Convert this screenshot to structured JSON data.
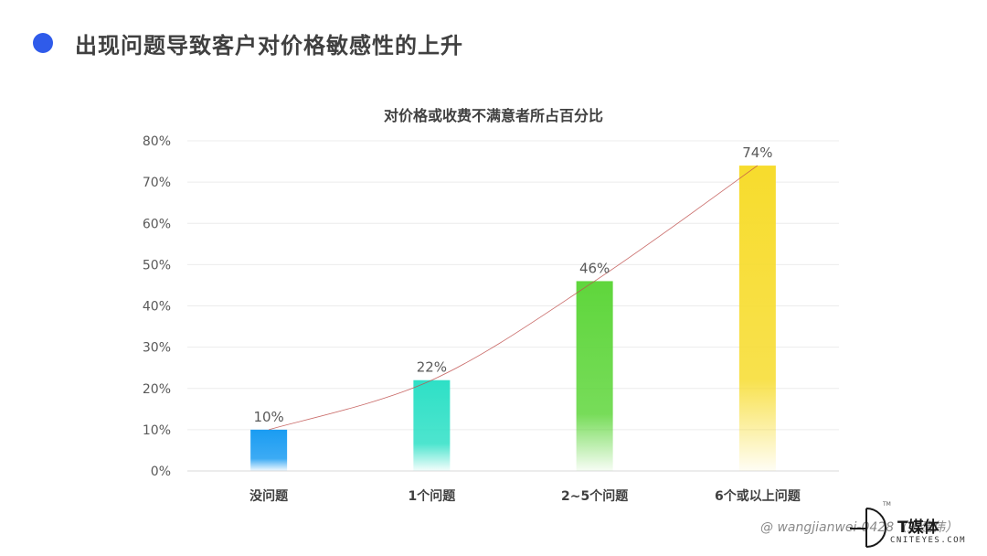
{
  "header": {
    "title": "出现问题导致客户对价格敏感性的上升",
    "bullet_color": "#2f5bea"
  },
  "chart_data": {
    "type": "bar",
    "title": "对价格或收费不满意者所占百分比",
    "categories": [
      "没问题",
      "1个问题",
      "2~5个问题",
      "6个或以上问题"
    ],
    "values": [
      10,
      22,
      46,
      74
    ],
    "value_labels": [
      "10%",
      "22%",
      "46%",
      "74%"
    ],
    "colors": [
      "#1a9cf2",
      "#2ee0c6",
      "#5fd63c",
      "#f7dc2d"
    ],
    "ylim": [
      0,
      80
    ],
    "yticks": [
      0,
      10,
      20,
      30,
      40,
      50,
      60,
      70,
      80
    ],
    "ytick_labels": [
      "0%",
      "10%",
      "20%",
      "30%",
      "40%",
      "50%",
      "60%",
      "70%",
      "80%"
    ],
    "grid": true,
    "trendline": true,
    "trendline_color": "#c0504d",
    "xlabel": "",
    "ylabel": ""
  },
  "watermark": {
    "text": "@ wangjianwei-0428（王建伟）"
  },
  "brand": {
    "name": "T媒体",
    "sub": "CNITEYES.COM",
    "tm": "TM"
  }
}
